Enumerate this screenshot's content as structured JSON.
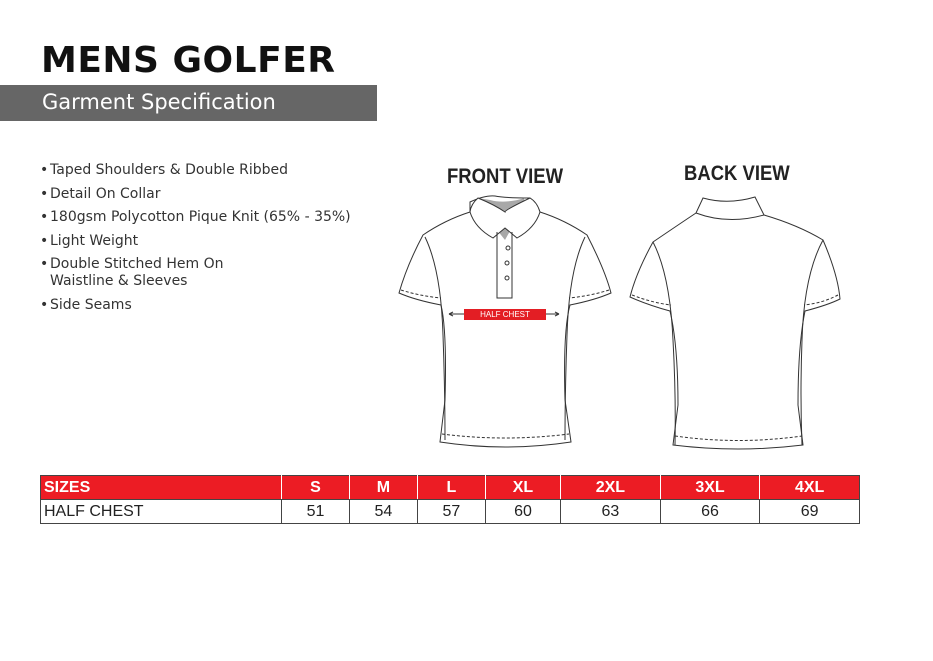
{
  "header": {
    "title": "MENS GOLFER",
    "subtitle": "Garment Specification"
  },
  "features": [
    "Taped Shoulders & Double Ribbed",
    "Detail On Collar",
    "180gsm Polycotton Pique Knit (65% - 35%)",
    "Light Weight",
    "Double Stitched Hem On\nWaistline & Sleeves",
    "Side Seams"
  ],
  "bullet": "•",
  "views": {
    "front_label": "FRONT VIEW",
    "back_label": "BACK VIEW",
    "measure_label": "HALF CHEST"
  },
  "colors": {
    "accent": "#ec1c24",
    "subtitle_bar": "#666666"
  },
  "size_table": {
    "header_label": "SIZES",
    "sizes": [
      "S",
      "M",
      "L",
      "XL",
      "2XL",
      "3XL",
      "4XL"
    ],
    "row_label": "HALF CHEST",
    "values": [
      "51",
      "54",
      "57",
      "60",
      "63",
      "66",
      "69"
    ]
  }
}
